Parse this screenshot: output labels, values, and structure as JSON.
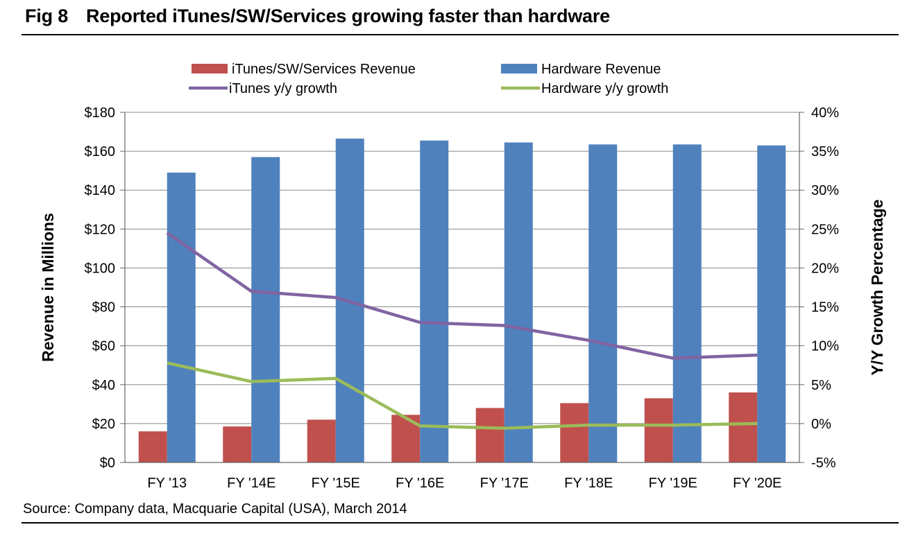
{
  "header": {
    "fig_number": "Fig 8",
    "title": "Reported iTunes/SW/Services growing faster than hardware"
  },
  "source": "Source: Company data, Macquarie Capital (USA), March 2014",
  "colors": {
    "itunes_bar": "#C0504D",
    "hardware_bar": "#4F81BD",
    "itunes_line": "#8064A2",
    "hardware_line": "#9BBB59",
    "grid": "#888888"
  },
  "chart_data": {
    "type": "bar",
    "title": "",
    "categories": [
      "FY '13",
      "FY '14E",
      "FY '15E",
      "FY '16E",
      "FY '17E",
      "FY '18E",
      "FY '19E",
      "FY '20E"
    ],
    "y_left": {
      "label": "Revenue in Millions",
      "range": [
        0,
        180
      ],
      "ticks": [
        "$0",
        "$20",
        "$40",
        "$60",
        "$80",
        "$100",
        "$120",
        "$140",
        "$160",
        "$180"
      ]
    },
    "y_right": {
      "label": "Y/Y Growth Percentage",
      "range": [
        -5,
        40
      ],
      "ticks": [
        "-5%",
        "0%",
        "5%",
        "10%",
        "15%",
        "20%",
        "25%",
        "30%",
        "35%",
        "40%"
      ]
    },
    "grid": true,
    "legend_position": "top",
    "series": [
      {
        "name": "iTunes/SW/Services Revenue",
        "type": "bar",
        "axis": "left",
        "values": [
          16,
          18.5,
          22,
          24.5,
          28,
          30.5,
          33,
          36
        ]
      },
      {
        "name": "Hardware Revenue",
        "type": "bar",
        "axis": "left",
        "values": [
          149,
          157,
          166.5,
          165.5,
          164.5,
          163.5,
          163.5,
          163
        ]
      },
      {
        "name": "iTunes y/y growth",
        "type": "line",
        "axis": "right",
        "values": [
          24.5,
          17,
          16.2,
          13,
          12.6,
          10.7,
          8.4,
          8.8
        ]
      },
      {
        "name": "Hardware y/y growth",
        "type": "line",
        "axis": "right",
        "values": [
          7.8,
          5.4,
          5.8,
          -0.3,
          -0.6,
          -0.2,
          -0.2,
          0
        ]
      }
    ]
  }
}
